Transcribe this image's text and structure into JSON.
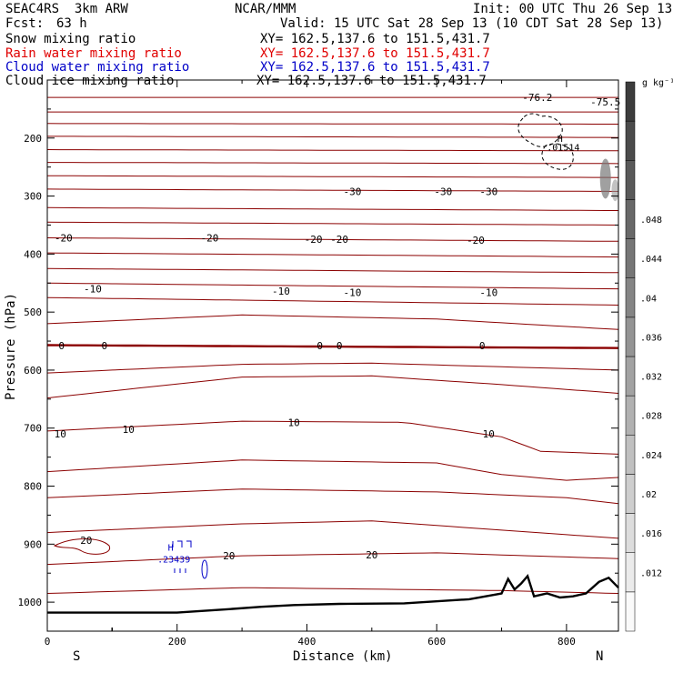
{
  "header": {
    "model": "SEAC4RS  3km ARW",
    "org": "NCAR/MMM",
    "init": "Init: 00 UTC Thu 26 Sep 13",
    "fcst_label": "Fcst:",
    "fcst_value": "63 h",
    "valid": "Valid: 15 UTC Sat 28 Sep 13 (10 CDT Sat 28 Sep 13)"
  },
  "fields": [
    {
      "name": "Snow mixing ratio",
      "xy": "XY= 162.5,137.6 to 151.5,431.7",
      "color": "#000000"
    },
    {
      "name": "Rain water mixing ratio",
      "xy": "XY= 162.5,137.6 to 151.5,431.7",
      "color": "#e00000"
    },
    {
      "name": "Cloud water mixing ratio",
      "xy": "XY= 162.5,137.6 to 151.5,431.7",
      "color": "#0000c8"
    },
    {
      "name": "Cloud ice mixing ratio",
      "xy": "XY= 162.5,137.6 to 151.5,431.7",
      "color": "#000000"
    }
  ],
  "chart_data": {
    "type": "contour-cross-section",
    "xlabel": "Distance (km)",
    "ylabel": "Pressure (hPa)",
    "xlim": [
      0,
      880
    ],
    "ylim": [
      1050,
      100
    ],
    "x_ticks": [
      0,
      200,
      400,
      600,
      800
    ],
    "y_ticks": [
      200,
      300,
      400,
      500,
      600,
      700,
      800,
      900,
      1000
    ],
    "x_end_labels": [
      "S",
      "N"
    ],
    "colorbar_unit": "g kg⁻¹",
    "colorbar_ticks": [
      ".012",
      ".016",
      ".02",
      ".024",
      ".028",
      ".032",
      ".036",
      ".04",
      ".044",
      ".048"
    ],
    "temperature_contours": [
      {
        "x": [
          0,
          880
        ],
        "p": [
          130,
          130
        ]
      },
      {
        "x": [
          0,
          880
        ],
        "p": [
          155,
          155
        ]
      },
      {
        "x": [
          0,
          880
        ],
        "p": [
          175,
          176
        ]
      },
      {
        "x": [
          0,
          880
        ],
        "p": [
          197,
          199
        ]
      },
      {
        "x": [
          0,
          880
        ],
        "p": [
          220,
          222
        ]
      },
      {
        "x": [
          0,
          880
        ],
        "p": [
          242,
          244
        ]
      },
      {
        "x": [
          0,
          880
        ],
        "p": [
          265,
          268
        ]
      },
      {
        "x": [
          0,
          880
        ],
        "p": [
          288,
          292
        ]
      },
      {
        "x": [
          0,
          880
        ],
        "p": [
          320,
          325
        ]
      },
      {
        "x": [
          0,
          880
        ],
        "p": [
          345,
          350
        ]
      },
      {
        "x": [
          0,
          880
        ],
        "p": [
          372,
          378
        ]
      },
      {
        "x": [
          0,
          880
        ],
        "p": [
          398,
          405
        ]
      },
      {
        "x": [
          0,
          880
        ],
        "p": [
          425,
          432
        ]
      },
      {
        "x": [
          0,
          880
        ],
        "p": [
          450,
          460
        ]
      },
      {
        "x": [
          0,
          880
        ],
        "p": [
          475,
          488
        ]
      },
      {
        "x": [
          0,
          300,
          600,
          880
        ],
        "p": [
          520,
          505,
          512,
          530
        ]
      },
      {
        "x": [
          0,
          880
        ],
        "p": [
          557,
          562
        ]
      },
      {
        "x": [
          0,
          300,
          500,
          880
        ],
        "p": [
          605,
          590,
          588,
          600
        ]
      },
      {
        "x": [
          0,
          300,
          500,
          700,
          880
        ],
        "p": [
          648,
          612,
          610,
          625,
          640
        ]
      },
      {
        "x": [
          0,
          300,
          550,
          700,
          760,
          880
        ],
        "p": [
          705,
          688,
          690,
          715,
          740,
          745
        ]
      },
      {
        "x": [
          0,
          300,
          600,
          700,
          800,
          880
        ],
        "p": [
          775,
          755,
          760,
          780,
          790,
          785
        ]
      },
      {
        "x": [
          0,
          300,
          600,
          800,
          880
        ],
        "p": [
          820,
          805,
          810,
          820,
          830
        ]
      },
      {
        "x": [
          0,
          300,
          500,
          880
        ],
        "p": [
          880,
          865,
          860,
          890
        ]
      },
      {
        "x": [
          0,
          300,
          600,
          880
        ],
        "p": [
          935,
          920,
          915,
          925
        ]
      },
      {
        "x": [
          0,
          300,
          700,
          880
        ],
        "p": [
          985,
          975,
          980,
          985
        ]
      }
    ],
    "contour_labels": [
      {
        "text": "-76.2",
        "x": 755,
        "p": 130
      },
      {
        "text": "-75.5",
        "x": 860,
        "p": 138
      },
      {
        "text": "-30",
        "x": 470,
        "p": 292
      },
      {
        "text": "-30",
        "x": 610,
        "p": 292
      },
      {
        "text": "-30",
        "x": 680,
        "p": 292
      },
      {
        "text": "-20",
        "x": 25,
        "p": 372
      },
      {
        "text": "-20",
        "x": 250,
        "p": 372
      },
      {
        "text": "-20",
        "x": 410,
        "p": 374
      },
      {
        "text": "-20",
        "x": 450,
        "p": 374
      },
      {
        "text": "-20",
        "x": 660,
        "p": 376
      },
      {
        "text": "-10",
        "x": 70,
        "p": 460
      },
      {
        "text": "-10",
        "x": 360,
        "p": 464
      },
      {
        "text": "-10",
        "x": 470,
        "p": 466
      },
      {
        "text": "-10",
        "x": 680,
        "p": 466
      },
      {
        "text": "0",
        "x": 22,
        "p": 558
      },
      {
        "text": "0",
        "x": 88,
        "p": 558
      },
      {
        "text": "0",
        "x": 420,
        "p": 558
      },
      {
        "text": "0",
        "x": 450,
        "p": 558
      },
      {
        "text": "0",
        "x": 670,
        "p": 558
      },
      {
        "text": "10",
        "x": 20,
        "p": 710
      },
      {
        "text": "10",
        "x": 125,
        "p": 702
      },
      {
        "text": "10",
        "x": 380,
        "p": 690
      },
      {
        "text": "10",
        "x": 680,
        "p": 710
      },
      {
        "text": "20",
        "x": 60,
        "p": 893
      },
      {
        "text": "20",
        "x": 280,
        "p": 920
      },
      {
        "text": "20",
        "x": 500,
        "p": 918
      }
    ],
    "terrain": {
      "x": [
        0,
        200,
        280,
        330,
        380,
        450,
        550,
        650,
        700,
        710,
        720,
        730,
        740,
        750,
        770,
        790,
        810,
        830,
        850,
        865,
        880
      ],
      "p": [
        1018,
        1018,
        1012,
        1008,
        1005,
        1003,
        1002,
        995,
        985,
        960,
        978,
        968,
        955,
        990,
        985,
        992,
        990,
        985,
        965,
        958,
        975
      ]
    },
    "max_labels": [
      {
        "text": "H",
        "x": 190,
        "p": 905,
        "color": "#0000c8"
      },
      {
        "text": ".23439",
        "x": 195,
        "p": 925,
        "color": "#0000c8"
      },
      {
        "text": "H",
        "x": 790,
        "p": 200,
        "color": "#000000"
      },
      {
        "text": ".01514",
        "x": 795,
        "p": 215,
        "color": "#000000"
      }
    ]
  }
}
